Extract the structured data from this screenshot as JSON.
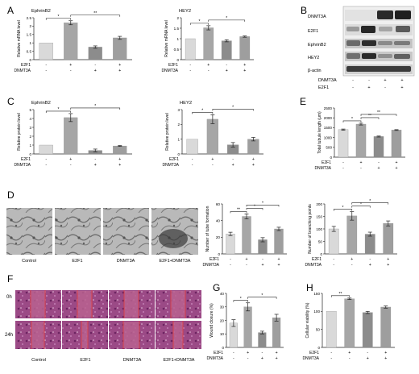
{
  "panel_letters": [
    "A",
    "B",
    "C",
    "D",
    "E",
    "F",
    "G",
    "H"
  ],
  "labels": {
    "tick_row_a": "E2F1",
    "tick_row_b": "DNMT3A"
  },
  "colors": {
    "bar_control": "#d9d9d9",
    "bar_e2f1": "#a6a6a6",
    "bar_dnmt3a": "#8c8c8c",
    "bar_combo": "#9e9e9e",
    "error": "#222222"
  },
  "chart_data": [
    {
      "id": "A1",
      "type": "bar",
      "title": "EphrinB2",
      "categories": [
        "Control",
        "E2F1",
        "DNMT3A",
        "E2F1+DNMT3A"
      ],
      "values": [
        1.0,
        2.2,
        0.75,
        1.3
      ],
      "errors": [
        0,
        0.12,
        0.07,
        0.09
      ],
      "ylabel": "Relative mRNA level",
      "ylim": [
        0,
        2.5
      ],
      "yticks": [
        0,
        0.5,
        1.0,
        1.5,
        2.0,
        2.5
      ],
      "e2f1": [
        "-",
        "+",
        "-",
        "+"
      ],
      "dnmt3a": [
        "-",
        "-",
        "+",
        "+"
      ],
      "sig": [
        {
          "from": 0,
          "to": 1,
          "label": "*"
        },
        {
          "from": 1,
          "to": 3,
          "label": "**"
        }
      ]
    },
    {
      "id": "A2",
      "type": "bar",
      "title": "HEY2",
      "categories": [
        "Control",
        "E2F1",
        "DNMT3A",
        "E2F1+DNMT3A"
      ],
      "values": [
        1.0,
        1.52,
        0.9,
        1.1
      ],
      "errors": [
        0,
        0.1,
        0.05,
        0.03
      ],
      "ylabel": "Relative mRNA level",
      "ylim": [
        0,
        2.0
      ],
      "yticks": [
        0.0,
        0.5,
        1.0,
        1.5,
        2.0
      ],
      "e2f1": [
        "-",
        "+",
        "-",
        "+"
      ],
      "dnmt3a": [
        "-",
        "-",
        "+",
        "+"
      ],
      "sig": [
        {
          "from": 0,
          "to": 1,
          "label": "*"
        },
        {
          "from": 1,
          "to": 3,
          "label": "*"
        }
      ]
    },
    {
      "id": "C1",
      "type": "bar",
      "title": "EphrinB2",
      "categories": [
        "Control",
        "E2F1",
        "DNMT3A",
        "E2F1+DNMT3A"
      ],
      "values": [
        1.0,
        4.1,
        0.4,
        0.9
      ],
      "errors": [
        0,
        0.45,
        0.15,
        0.05
      ],
      "ylabel": "Relative protein level",
      "ylim": [
        0,
        5
      ],
      "yticks": [
        0,
        1,
        2,
        3,
        4,
        5
      ],
      "e2f1": [
        "-",
        "+",
        "-",
        "+"
      ],
      "dnmt3a": [
        "-",
        "-",
        "+",
        "+"
      ],
      "sig": [
        {
          "from": 0,
          "to": 1,
          "label": "*"
        },
        {
          "from": 1,
          "to": 3,
          "label": "*"
        }
      ]
    },
    {
      "id": "C2",
      "type": "bar",
      "title": "HEY2",
      "categories": [
        "Control",
        "E2F1",
        "DNMT3A",
        "E2F1+DNMT3A"
      ],
      "values": [
        1.0,
        2.35,
        0.62,
        1.0
      ],
      "errors": [
        0,
        0.3,
        0.15,
        0.12
      ],
      "ylabel": "Relative protein level",
      "ylim": [
        0,
        3
      ],
      "yticks": [
        0,
        1,
        2,
        3
      ],
      "e2f1": [
        "-",
        "+",
        "-",
        "+"
      ],
      "dnmt3a": [
        "-",
        "-",
        "+",
        "+"
      ],
      "sig": [
        {
          "from": 0,
          "to": 1,
          "label": "*"
        },
        {
          "from": 1,
          "to": 3,
          "label": "*"
        }
      ]
    },
    {
      "id": "E",
      "type": "bar",
      "title": "",
      "categories": [
        "Control",
        "E2F1",
        "DNMT3A",
        "E2F1+DNMT3A"
      ],
      "values": [
        1400,
        1680,
        1050,
        1380
      ],
      "errors": [
        30,
        45,
        25,
        20
      ],
      "ylabel": "Total tubule length (μm)",
      "ylim": [
        0,
        2500
      ],
      "yticks": [
        0,
        500,
        1000,
        1500,
        2000,
        2500
      ],
      "e2f1": [
        "-",
        "+",
        "-",
        "+"
      ],
      "dnmt3a": [
        "-",
        "-",
        "+",
        "+"
      ],
      "sig": [
        {
          "from": 0,
          "to": 1,
          "label": "*"
        },
        {
          "from": 1,
          "to": 2,
          "label": "**"
        },
        {
          "from": 1,
          "to": 3,
          "label": "**"
        }
      ]
    },
    {
      "id": "D1",
      "type": "bar",
      "title": "",
      "categories": [
        "Control",
        "E2F1",
        "DNMT3A",
        "E2F1+DNMT3A"
      ],
      "values": [
        24,
        45,
        17,
        30
      ],
      "errors": [
        2,
        3,
        2.5,
        2
      ],
      "ylabel": "Number of tube formation",
      "ylim": [
        0,
        60
      ],
      "yticks": [
        0,
        20,
        40,
        60
      ],
      "e2f1": [
        "-",
        "+",
        "-",
        "+"
      ],
      "dnmt3a": [
        "-",
        "-",
        "+",
        "+"
      ],
      "sig": [
        {
          "from": 0,
          "to": 1,
          "label": "**"
        },
        {
          "from": 1,
          "to": 2,
          "label": "*"
        },
        {
          "from": 1,
          "to": 3,
          "label": "*"
        }
      ]
    },
    {
      "id": "D2",
      "type": "bar",
      "title": "",
      "categories": [
        "Control",
        "E2F1",
        "DNMT3A",
        "E2F1+DNMT3A"
      ],
      "values": [
        100,
        152,
        79,
        122
      ],
      "errors": [
        10,
        17,
        8,
        10
      ],
      "ylabel": "Number of branching points",
      "ylim": [
        0,
        200
      ],
      "yticks": [
        0,
        50,
        100,
        150,
        200
      ],
      "e2f1": [
        "-",
        "+",
        "-",
        "+"
      ],
      "dnmt3a": [
        "-",
        "-",
        "+",
        "+"
      ],
      "sig": [
        {
          "from": 0,
          "to": 1,
          "label": "*"
        },
        {
          "from": 1,
          "to": 2,
          "label": "*"
        },
        {
          "from": 1,
          "to": 3,
          "label": "*"
        }
      ]
    },
    {
      "id": "G",
      "type": "bar",
      "title": "",
      "categories": [
        "Control",
        "E2F1",
        "DNMT3A",
        "E2F1+DNMT3A"
      ],
      "values": [
        18,
        30,
        11,
        22
      ],
      "errors": [
        2.5,
        3,
        1,
        2.5
      ],
      "ylabel": "Wound closure (%)",
      "ylim": [
        0,
        40
      ],
      "yticks": [
        0,
        10,
        20,
        30,
        40
      ],
      "e2f1": [
        "-",
        "+",
        "-",
        "+"
      ],
      "dnmt3a": [
        "-",
        "-",
        "+",
        "+"
      ],
      "sig": [
        {
          "from": 0,
          "to": 1,
          "label": "*"
        },
        {
          "from": 1,
          "to": 3,
          "label": "*"
        }
      ]
    },
    {
      "id": "H",
      "type": "bar",
      "title": "",
      "categories": [
        "Control",
        "E2F1",
        "DNMT3A",
        "E2F1+DNMT3A"
      ],
      "values": [
        100,
        135,
        97,
        112
      ],
      "errors": [
        0,
        2,
        3,
        3
      ],
      "ylabel": "Cellular viability (%)",
      "ylim": [
        0,
        150
      ],
      "yticks": [
        0,
        50,
        100,
        150
      ],
      "e2f1": [
        "-",
        "+",
        "-",
        "+"
      ],
      "dnmt3a": [
        "-",
        "-",
        "+",
        "+"
      ],
      "sig": [
        {
          "from": 0,
          "to": 1,
          "label": "**"
        }
      ]
    }
  ],
  "blot": {
    "rows": [
      "DNMT3A",
      "E2F1",
      "EphrinB2",
      "HEY2",
      "β-actin"
    ],
    "condition_rows": [
      {
        "label": "DNMT3A",
        "signs": [
          "-",
          "-",
          "+",
          "+"
        ]
      },
      {
        "label": "E2F1",
        "signs": [
          "-",
          "+",
          "-",
          "+"
        ]
      }
    ]
  },
  "tube_images": {
    "labels": [
      "Control",
      "E2F1",
      "DNMT3A",
      "E2F1+DNMT3A"
    ]
  },
  "wound_images": {
    "row_labels": [
      "0h",
      "24h"
    ],
    "labels": [
      "Control",
      "E2F1",
      "DNMT3A",
      "E2F1+DNMT3A"
    ]
  }
}
